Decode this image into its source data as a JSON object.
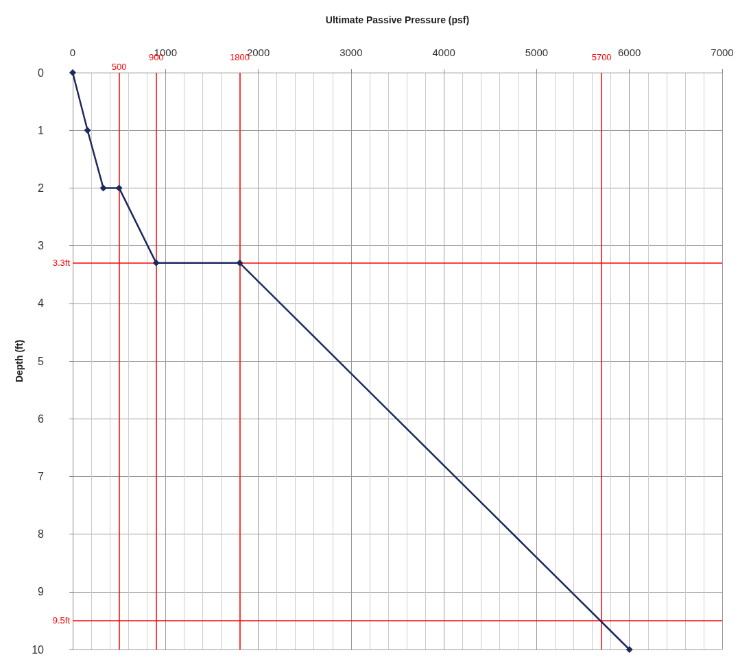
{
  "chart_data": {
    "type": "line",
    "xlabel": "Ultimate Passive Pressure (psf)",
    "ylabel": "Depth (ft)",
    "x": [
      0,
      160,
      330,
      500,
      900,
      1800,
      6000
    ],
    "series": [
      {
        "color": "#1c2a5e",
        "values": [
          0,
          1,
          2,
          2,
          3.3,
          3.3,
          10
        ]
      }
    ],
    "xlim": [
      0,
      7000
    ],
    "xticks": [
      0,
      1000,
      2000,
      3000,
      4000,
      5000,
      6000,
      7000
    ],
    "ylim": [
      10,
      0
    ],
    "yticks": [
      0,
      1,
      2,
      3,
      4,
      5,
      6,
      7,
      8,
      9,
      10
    ],
    "grid": true,
    "marker": "diamond",
    "line_style": "solid",
    "ref_lines": [
      {
        "axis": "x",
        "value": 500,
        "label": "500",
        "color": "#ff0000"
      },
      {
        "axis": "x",
        "value": 900,
        "label": "900",
        "color": "#ff0000"
      },
      {
        "axis": "x",
        "value": 1800,
        "label": "1800",
        "color": "#ff0000"
      },
      {
        "axis": "x",
        "value": 5700,
        "label": "5700",
        "color": "#ff0000"
      },
      {
        "axis": "y",
        "value": 3.3,
        "label": "3.3ft",
        "color": "#ff0000"
      },
      {
        "axis": "y",
        "value": 9.5,
        "label": "9.5ft",
        "color": "#ff0000"
      }
    ]
  }
}
